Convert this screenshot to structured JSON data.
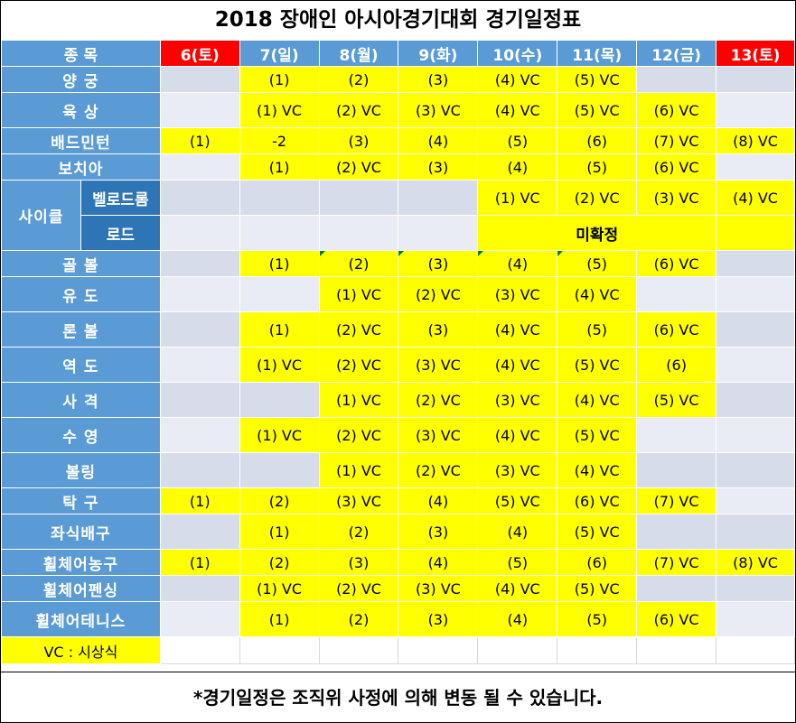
{
  "title": "2018 장애인 아시아경기대회 경기일정표",
  "header": {
    "sport_label": "종 목",
    "days": [
      "6(토)",
      "7(일)",
      "8(월)",
      "9(화)",
      "10(수)",
      "11(목)",
      "12(금)",
      "13(토)"
    ]
  },
  "rows": [
    {
      "sport": "양 궁",
      "cells": [
        "",
        "(1)",
        "(2)",
        "(3)",
        "(4) VC",
        "(5) VC",
        "",
        ""
      ]
    },
    {
      "sport": "육 상",
      "cells": [
        "",
        "(1) VC",
        "(2) VC",
        "(3) VC",
        "(4) VC",
        "(5) VC",
        "(6) VC",
        ""
      ]
    },
    {
      "sport": "배드민턴",
      "cells": [
        "(1)",
        "-2",
        "(3)",
        "(4)",
        "(5)",
        "(6)",
        "(7) VC",
        "(8) VC"
      ]
    },
    {
      "sport": "보치아",
      "cells": [
        "",
        "(1)",
        "(2) VC",
        "(3)",
        "(4)",
        "(5)",
        "(6) VC",
        ""
      ]
    },
    {
      "sport": "사이클",
      "sub": "벨로드롬",
      "cells": [
        "",
        "",
        "",
        "",
        "(1) VC",
        "(2) VC",
        "(3) VC",
        "(4) VC"
      ]
    },
    {
      "sub": "로드",
      "tbd": "미확정"
    },
    {
      "sport": "골 볼",
      "cells": [
        "",
        "(1)",
        "(2)",
        "(3)",
        "(4)",
        "(5)",
        "(6) VC",
        ""
      ]
    },
    {
      "sport": "유 도",
      "cells": [
        "",
        "",
        "(1) VC",
        "(2) VC",
        "(3) VC",
        "(4) VC",
        "",
        ""
      ]
    },
    {
      "sport": "론 볼",
      "cells": [
        "",
        "(1)",
        "(2) VC",
        "(3)",
        "(4) VC",
        "(5)",
        "(6) VC",
        ""
      ]
    },
    {
      "sport": "역 도",
      "cells": [
        "",
        "(1) VC",
        "(2) VC",
        "(3) VC",
        "(4) VC",
        "(5) VC",
        "(6)",
        ""
      ]
    },
    {
      "sport": "사 격",
      "cells": [
        "",
        "",
        "(1) VC",
        "(2) VC",
        "(3) VC",
        "(4) VC",
        "(5) VC",
        ""
      ]
    },
    {
      "sport": "수 영",
      "cells": [
        "",
        "(1) VC",
        "(2) VC",
        "(3) VC",
        "(4) VC",
        "(5) VC",
        "",
        ""
      ]
    },
    {
      "sport": "볼링",
      "cells": [
        "",
        "",
        "(1) VC",
        "(2) VC",
        "(3) VC",
        "(4) VC",
        "",
        ""
      ]
    },
    {
      "sport": "탁 구",
      "cells": [
        "(1)",
        "(2)",
        "(3) VC",
        "(4)",
        "(5) VC",
        "(6) VC",
        "(7) VC",
        ""
      ]
    },
    {
      "sport": "좌식배구",
      "cells": [
        "",
        "(1)",
        "(2)",
        "(3)",
        "(4)",
        "(5) VC",
        "",
        ""
      ]
    },
    {
      "sport": "휠체어농구",
      "cells": [
        "(1)",
        "(2)",
        "(3)",
        "(4)",
        "(5)",
        "(6)",
        "(7) VC",
        "(8) VC"
      ]
    },
    {
      "sport": "휠체어펜싱",
      "cells": [
        "",
        "(1) VC",
        "(2) VC",
        "(3) VC",
        "(4) VC",
        "(5) VC",
        "",
        ""
      ]
    },
    {
      "sport": "휠체어테니스",
      "cells": [
        "",
        "(1)",
        "(2)",
        "(3)",
        "(4)",
        "(5)",
        "(6) VC",
        ""
      ]
    }
  ],
  "legend": "VC : 시상식",
  "note": "*경기일정은 조직위 사정에 의해 변동 될 수 있습니다.",
  "colors": {
    "header_blue": "#5b9bd5",
    "sub_blue": "#2e75b6",
    "highlight": "#ffff00",
    "saturday_red": "#ff0000"
  }
}
